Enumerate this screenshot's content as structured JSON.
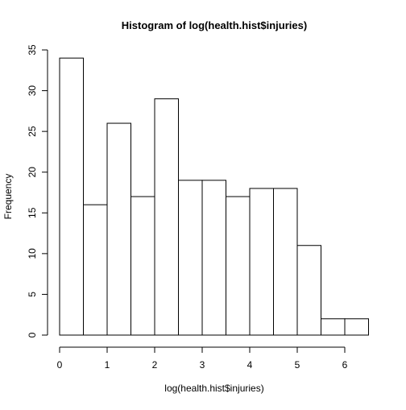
{
  "chart_data": {
    "type": "bar",
    "title": "Histogram of log(health.hist$injuries)",
    "xlabel": "log(health.hist$injuries)",
    "ylabel": "Frequency",
    "bin_width": 0.5,
    "bins": [
      {
        "x0": 0.0,
        "x1": 0.5,
        "count": 34
      },
      {
        "x0": 0.5,
        "x1": 1.0,
        "count": 16
      },
      {
        "x0": 1.0,
        "x1": 1.5,
        "count": 26
      },
      {
        "x0": 1.5,
        "x1": 2.0,
        "count": 17
      },
      {
        "x0": 2.0,
        "x1": 2.5,
        "count": 29
      },
      {
        "x0": 2.5,
        "x1": 3.0,
        "count": 19
      },
      {
        "x0": 3.0,
        "x1": 3.5,
        "count": 19
      },
      {
        "x0": 3.5,
        "x1": 4.0,
        "count": 17
      },
      {
        "x0": 4.0,
        "x1": 4.5,
        "count": 18
      },
      {
        "x0": 4.5,
        "x1": 5.0,
        "count": 18
      },
      {
        "x0": 5.0,
        "x1": 5.5,
        "count": 11
      },
      {
        "x0": 5.5,
        "x1": 6.0,
        "count": 2
      },
      {
        "x0": 6.0,
        "x1": 6.5,
        "count": 2
      }
    ],
    "xlim": [
      0,
      6.5
    ],
    "ylim": [
      0,
      35
    ],
    "x_ticks": [
      0,
      1,
      2,
      3,
      4,
      5,
      6
    ],
    "x_tick_labels": [
      "0",
      "1",
      "2",
      "3",
      "4",
      "5",
      "6"
    ],
    "y_ticks": [
      0,
      5,
      10,
      15,
      20,
      25,
      30,
      35
    ],
    "y_tick_labels": [
      "0",
      "5",
      "10",
      "15",
      "20",
      "25",
      "30",
      "35"
    ],
    "bar_fill": "#ffffff",
    "bar_stroke": "#000000",
    "grid": false,
    "legend": "none"
  }
}
